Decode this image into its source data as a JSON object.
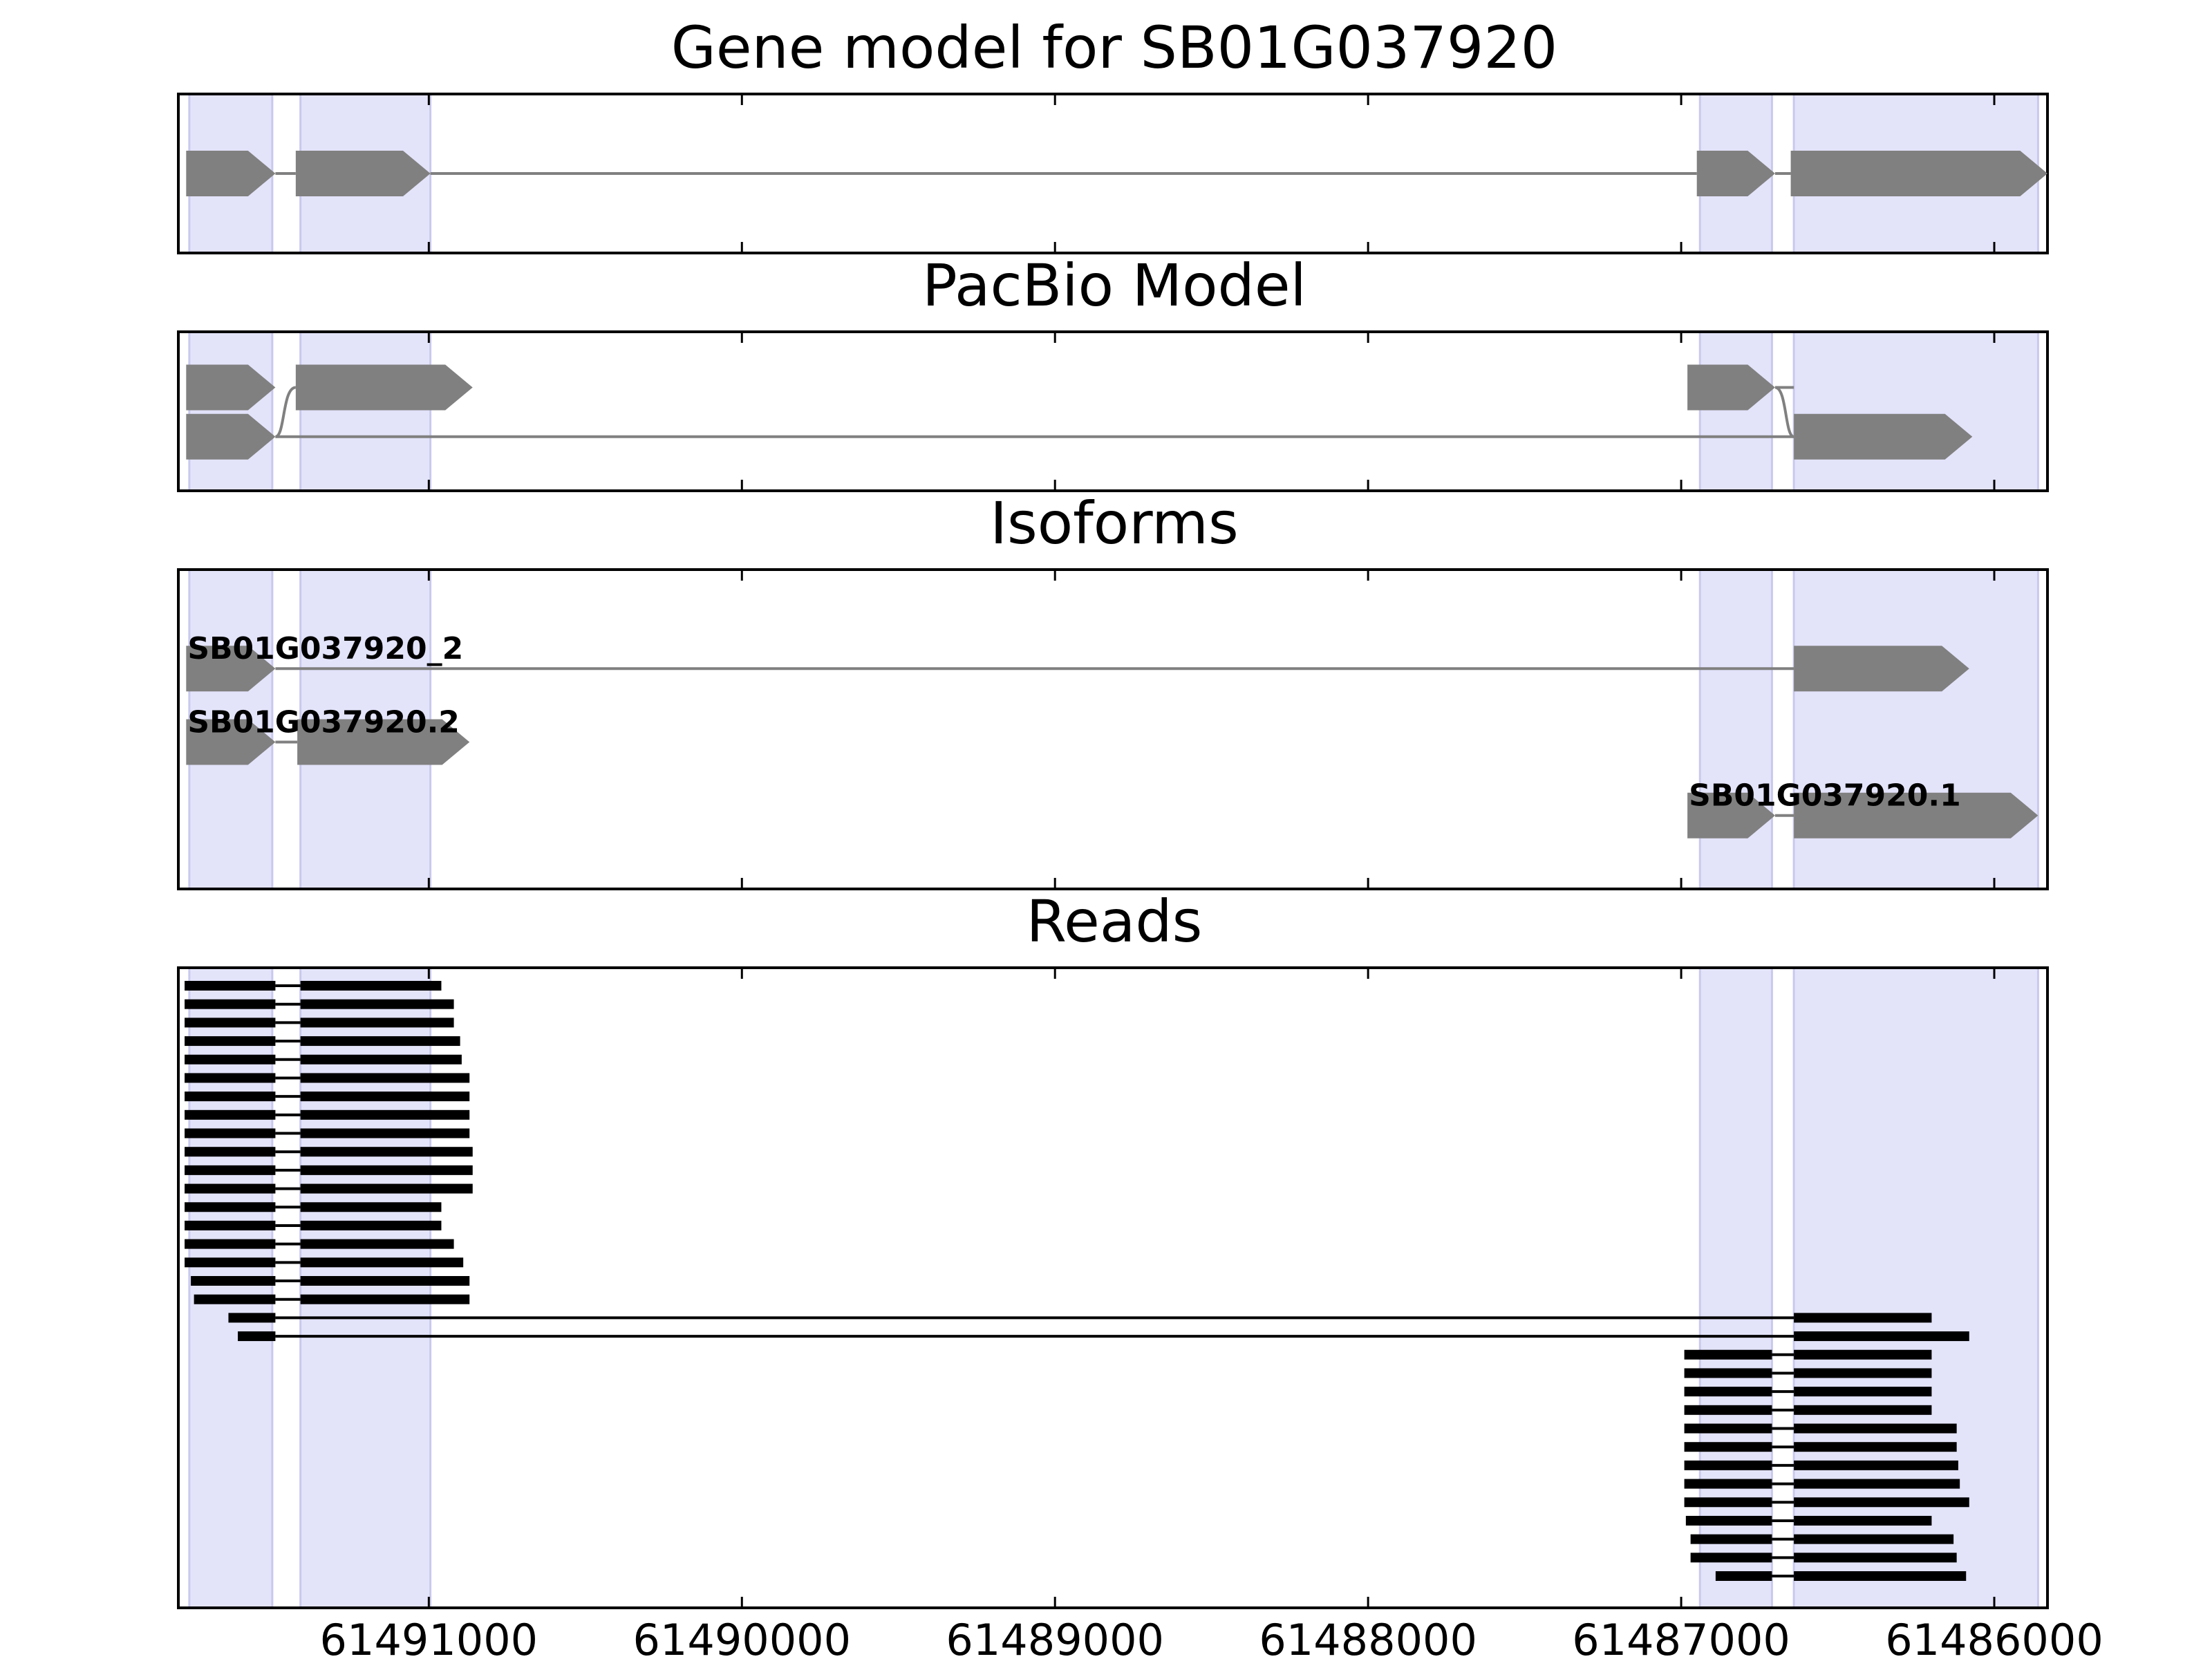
{
  "chart_data": {
    "type": "gene_track_plot",
    "axis": {
      "orientation": "reversed",
      "xlim": [
        61491800,
        61485830
      ],
      "ticks": [
        61491000,
        61490000,
        61489000,
        61488000,
        61487000,
        61486000
      ],
      "tick_labels": [
        "61491000",
        "61490000",
        "61489000",
        "61488000",
        "61487000",
        "61486000"
      ]
    },
    "exon_regions": [
      [
        61491765,
        61491500
      ],
      [
        61491410,
        61490995
      ],
      [
        61486940,
        61486710
      ],
      [
        61486640,
        61485860
      ]
    ],
    "panels": [
      {
        "title": "Gene model for SB01G037920",
        "models": [
          {
            "label": "",
            "exons": [
              [
                61491775,
                61491490
              ],
              [
                61491425,
                61490995
              ],
              [
                61486950,
                61486700
              ],
              [
                61486650,
                61485830
              ]
            ],
            "row": 0,
            "rows": 1
          }
        ]
      },
      {
        "title": "PacBio Model",
        "models": [
          {
            "label": "",
            "exons": [
              [
                61491775,
                61491490
              ],
              [
                61491425,
                61490860
              ]
            ],
            "row": 0,
            "rows": 2,
            "connector": "curve"
          },
          {
            "label": "",
            "exons": [
              [
                61491775,
                61491490
              ],
              [
                61486640,
                61486070
              ]
            ],
            "row": 1,
            "rows": 2
          },
          {
            "label": "",
            "exons": [
              [
                61486980,
                61486700
              ],
              [
                61486640,
                61486070
              ]
            ],
            "row": 0,
            "rows": 2,
            "connector_to_row": 1
          }
        ]
      },
      {
        "title": "Isoforms",
        "models": [
          {
            "label": "SB01G037920_2",
            "exons": [
              [
                61491775,
                61491490
              ],
              [
                61486640,
                61486080
              ]
            ],
            "row": 0,
            "rows": 3
          },
          {
            "label": "SB01G037920.2",
            "exons": [
              [
                61491775,
                61491490
              ],
              [
                61491420,
                61490870
              ]
            ],
            "row": 1,
            "rows": 3
          },
          {
            "label": "SB01G037920.1",
            "exons": [
              [
                61486980,
                61486700
              ],
              [
                61486640,
                61485860
              ]
            ],
            "row": 2,
            "rows": 3
          }
        ]
      },
      {
        "title": "Reads",
        "read_rows": 33,
        "reads": [
          {
            "blocks": [
              [
                61491780,
                61491490
              ],
              [
                61491410,
                61490960
              ]
            ]
          },
          {
            "blocks": [
              [
                61491780,
                61491490
              ],
              [
                61491410,
                61490920
              ]
            ]
          },
          {
            "blocks": [
              [
                61491780,
                61491490
              ],
              [
                61491410,
                61490920
              ]
            ]
          },
          {
            "blocks": [
              [
                61491780,
                61491490
              ],
              [
                61491410,
                61490900
              ]
            ]
          },
          {
            "blocks": [
              [
                61491780,
                61491490
              ],
              [
                61491410,
                61490895
              ]
            ]
          },
          {
            "blocks": [
              [
                61491780,
                61491490
              ],
              [
                61491410,
                61490870
              ]
            ]
          },
          {
            "blocks": [
              [
                61491780,
                61491490
              ],
              [
                61491410,
                61490870
              ]
            ]
          },
          {
            "blocks": [
              [
                61491780,
                61491490
              ],
              [
                61491410,
                61490870
              ]
            ]
          },
          {
            "blocks": [
              [
                61491780,
                61491490
              ],
              [
                61491410,
                61490870
              ]
            ]
          },
          {
            "blocks": [
              [
                61491780,
                61491490
              ],
              [
                61491410,
                61490860
              ]
            ]
          },
          {
            "blocks": [
              [
                61491780,
                61491490
              ],
              [
                61491410,
                61490860
              ]
            ]
          },
          {
            "blocks": [
              [
                61491780,
                61491490
              ],
              [
                61491410,
                61490860
              ]
            ]
          },
          {
            "blocks": [
              [
                61491780,
                61491490
              ],
              [
                61491410,
                61490960
              ]
            ]
          },
          {
            "blocks": [
              [
                61491780,
                61491490
              ],
              [
                61491410,
                61490960
              ]
            ]
          },
          {
            "blocks": [
              [
                61491780,
                61491490
              ],
              [
                61491410,
                61490920
              ]
            ]
          },
          {
            "blocks": [
              [
                61491780,
                61491490
              ],
              [
                61491410,
                61490890
              ]
            ]
          },
          {
            "blocks": [
              [
                61491760,
                61491490
              ],
              [
                61491410,
                61490870
              ]
            ]
          },
          {
            "blocks": [
              [
                61491750,
                61491490
              ],
              [
                61491410,
                61490870
              ]
            ]
          },
          {
            "blocks": [
              [
                61491640,
                61491490
              ],
              [
                61486640,
                61486200
              ]
            ]
          },
          {
            "blocks": [
              [
                61491610,
                61491490
              ],
              [
                61486640,
                61486080
              ]
            ]
          },
          {
            "blocks": [
              [
                61486990,
                61486710
              ],
              [
                61486640,
                61486200
              ]
            ]
          },
          {
            "blocks": [
              [
                61486990,
                61486710
              ],
              [
                61486640,
                61486200
              ]
            ]
          },
          {
            "blocks": [
              [
                61486990,
                61486710
              ],
              [
                61486640,
                61486200
              ]
            ]
          },
          {
            "blocks": [
              [
                61486990,
                61486710
              ],
              [
                61486640,
                61486200
              ]
            ]
          },
          {
            "blocks": [
              [
                61486990,
                61486710
              ],
              [
                61486640,
                61486120
              ]
            ]
          },
          {
            "blocks": [
              [
                61486990,
                61486710
              ],
              [
                61486640,
                61486120
              ]
            ]
          },
          {
            "blocks": [
              [
                61486990,
                61486710
              ],
              [
                61486640,
                61486115
              ]
            ]
          },
          {
            "blocks": [
              [
                61486990,
                61486710
              ],
              [
                61486640,
                61486110
              ]
            ]
          },
          {
            "blocks": [
              [
                61486990,
                61486710
              ],
              [
                61486640,
                61486080
              ]
            ]
          },
          {
            "blocks": [
              [
                61486985,
                61486710
              ],
              [
                61486640,
                61486200
              ]
            ]
          },
          {
            "blocks": [
              [
                61486970,
                61486710
              ],
              [
                61486640,
                61486130
              ]
            ]
          },
          {
            "blocks": [
              [
                61486970,
                61486710
              ],
              [
                61486640,
                61486120
              ]
            ]
          },
          {
            "blocks": [
              [
                61486890,
                61486710
              ],
              [
                61486640,
                61486090
              ]
            ]
          }
        ]
      }
    ]
  },
  "colors": {
    "exon_region": "#e3e3fa",
    "exon_region_edge": "#c9c9ee",
    "model": "#808080",
    "read": "#000000",
    "frame": "#000000"
  }
}
